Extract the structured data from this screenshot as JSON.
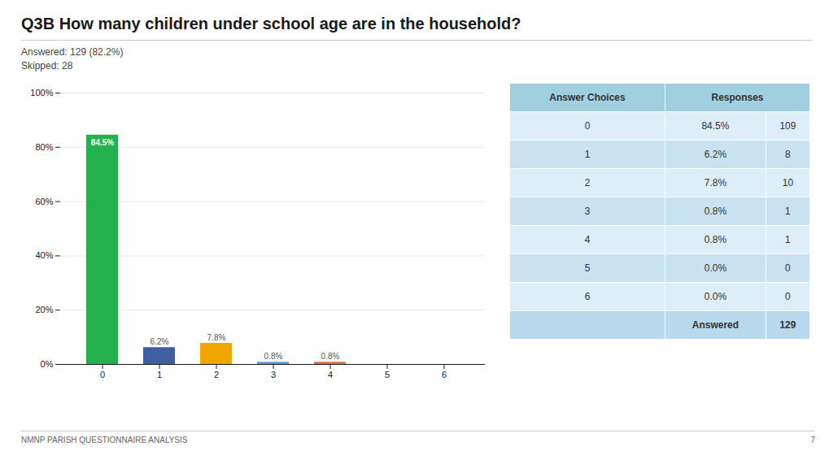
{
  "chart_data": {
    "type": "bar",
    "title": "Q3B  How many children under school age are in the household?",
    "subtitle": [
      "Answered: 129 (82.2%)",
      "Skipped: 28"
    ],
    "categories": [
      "0",
      "1",
      "2",
      "3",
      "4",
      "5",
      "6"
    ],
    "values": [
      84.5,
      6.2,
      7.8,
      0.8,
      0.8,
      0.0,
      0.0
    ],
    "value_labels": [
      "84.5%",
      "6.2%",
      "7.8%",
      "0.8%",
      "0.8%",
      null,
      null
    ],
    "data_labels": true,
    "colors": [
      "#22b14c",
      "#3f5fa0",
      "#f0a500",
      "#5b9bd5",
      "#e07040",
      "#aaaaaa",
      "#aaaaaa"
    ],
    "ylim": [
      0,
      100
    ],
    "yticks": [
      {
        "value": 0,
        "label": "0%"
      },
      {
        "value": 20,
        "label": "20%"
      },
      {
        "value": 40,
        "label": "40%"
      },
      {
        "value": 60,
        "label": "60%"
      },
      {
        "value": 80,
        "label": "80%"
      },
      {
        "value": 100,
        "label": "100%"
      }
    ],
    "grid": true,
    "table": {
      "header": [
        "Answer Choices",
        "Responses"
      ],
      "rows": [
        [
          "0",
          "84.5%",
          "109"
        ],
        [
          "1",
          "6.2%",
          "8"
        ],
        [
          "2",
          "7.8%",
          "10"
        ],
        [
          "3",
          "0.8%",
          "1"
        ],
        [
          "4",
          "0.8%",
          "1"
        ],
        [
          "5",
          "0.0%",
          "0"
        ],
        [
          "6",
          "0.0%",
          "0"
        ],
        [
          null,
          "Answered",
          "129"
        ]
      ]
    },
    "annotations": [
      "NMNP PARISH QUESTIONNAIRE ANALYSIS",
      "7"
    ]
  }
}
